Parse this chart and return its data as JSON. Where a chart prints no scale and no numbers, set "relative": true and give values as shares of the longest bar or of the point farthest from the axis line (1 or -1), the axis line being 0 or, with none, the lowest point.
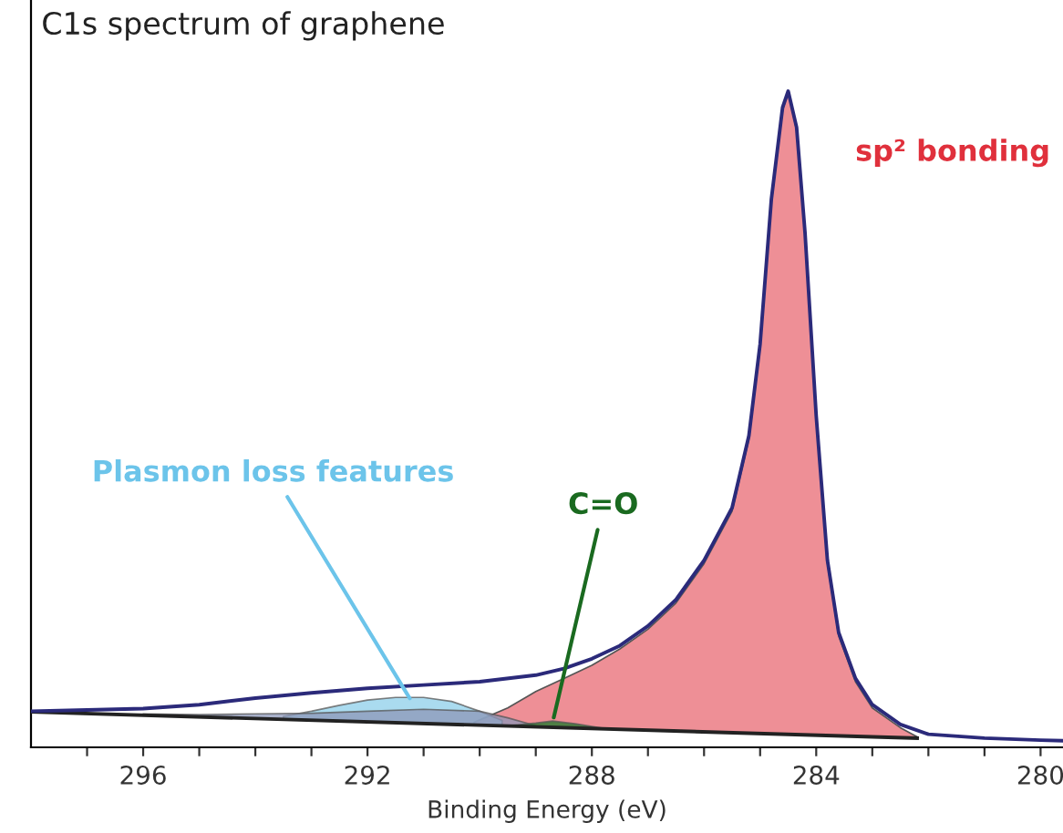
{
  "chart_data": {
    "type": "area",
    "title": "C1s spectrum of graphene",
    "xlabel": "Binding Energy (eV)",
    "relative": true,
    "grid": false,
    "xlim": [
      298,
      279.6
    ],
    "xticks": [
      {
        "value": 297,
        "label": null
      },
      296,
      {
        "value": 295,
        "label": null
      },
      {
        "value": 294,
        "label": null
      },
      {
        "value": 293,
        "label": null
      },
      292,
      {
        "value": 291,
        "label": null
      },
      {
        "value": 290,
        "label": null
      },
      {
        "value": 289,
        "label": null
      },
      288,
      {
        "value": 287,
        "label": null
      },
      {
        "value": 286,
        "label": null
      },
      {
        "value": 285,
        "label": null
      },
      284,
      {
        "value": 283,
        "label": null
      },
      {
        "value": 282,
        "label": null
      },
      {
        "value": 281,
        "label": null
      },
      280
    ],
    "series": [
      {
        "color": "#ee8f96",
        "x": [
          290.1,
          289.5,
          289,
          288.5,
          288,
          287.5,
          287,
          286.5,
          286,
          285.5,
          285.2,
          285,
          284.8,
          284.6,
          284.5,
          284.35,
          284.2,
          284,
          283.8,
          283.6,
          283.3,
          283,
          282.5,
          282.2
        ],
        "values": [
          0.038,
          0.06,
          0.085,
          0.105,
          0.125,
          0.15,
          0.18,
          0.22,
          0.28,
          0.36,
          0.47,
          0.61,
          0.83,
          0.97,
          1.0,
          0.94,
          0.78,
          0.5,
          0.28,
          0.17,
          0.1,
          0.06,
          0.03,
          0.016
        ]
      },
      {
        "color": "#8ecfea",
        "x": [
          293.5,
          293,
          292.5,
          292,
          291.5,
          291,
          290.5,
          290,
          289.6
        ],
        "values": [
          0.047,
          0.055,
          0.064,
          0.072,
          0.076,
          0.076,
          0.07,
          0.055,
          0.041
        ]
      },
      {
        "color": "#8c97b8",
        "x": [
          296,
          295,
          294,
          293,
          292,
          291,
          290,
          289.5,
          289
        ],
        "values": [
          0.051,
          0.05,
          0.051,
          0.052,
          0.055,
          0.058,
          0.055,
          0.045,
          0.033
        ]
      },
      {
        "color": "#1a7a2a",
        "x": [
          289.5,
          289,
          288.7,
          288.3,
          287.8
        ],
        "values": [
          0.033,
          0.037,
          0.04,
          0.036,
          0.029
        ]
      },
      {
        "type": "line",
        "color": "#222222",
        "x": [
          298,
          282.2
        ],
        "values": [
          0.054,
          0.014
        ]
      },
      {
        "type": "line",
        "color": "#2b2a7a",
        "x": [
          298,
          297,
          296,
          295,
          294,
          293,
          292,
          291,
          290,
          289,
          288.5,
          288,
          287.5,
          287,
          286.5,
          286,
          285.5,
          285.2,
          285,
          284.8,
          284.6,
          284.5,
          284.35,
          284.2,
          284,
          283.8,
          283.6,
          283.3,
          283,
          282.5,
          282,
          281,
          280,
          279.6
        ],
        "values": [
          0.055,
          0.057,
          0.059,
          0.065,
          0.075,
          0.083,
          0.09,
          0.095,
          0.1,
          0.11,
          0.12,
          0.135,
          0.155,
          0.185,
          0.225,
          0.285,
          0.365,
          0.475,
          0.615,
          0.835,
          0.975,
          1.0,
          0.945,
          0.785,
          0.505,
          0.285,
          0.175,
          0.105,
          0.065,
          0.035,
          0.02,
          0.014,
          0.011,
          0.01
        ]
      }
    ],
    "annotations": [
      {
        "text": "sp² bonding",
        "x": 284.5,
        "y": 1.0
      },
      {
        "text": "Plasmon loss features",
        "x": 291.2,
        "y": 0.068
      },
      {
        "text": "C=O",
        "x": 288.7,
        "y": 0.038
      }
    ]
  }
}
